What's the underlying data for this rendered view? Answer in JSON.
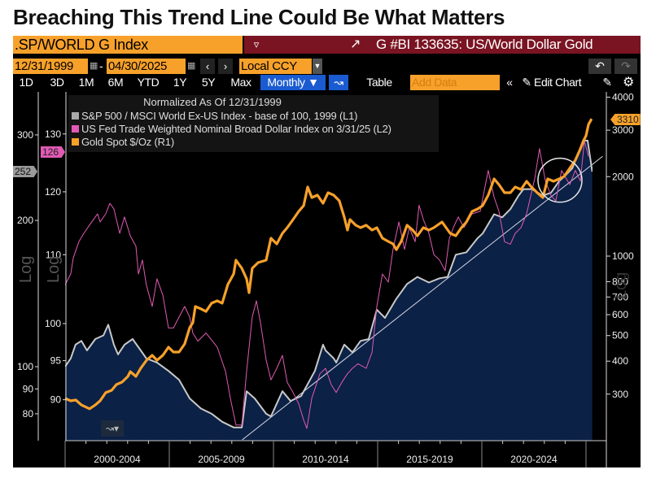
{
  "headline": "Breaching This Trend Line Could Be What Matters",
  "security": {
    "value": ".SP/WORLD G Index",
    "dropdown_icon": "filter-arrow-icon"
  },
  "graph_title": "G #BI 133635: US/World Dollar Gold",
  "dates": {
    "start": "12/31/1999",
    "separator": "-",
    "end": "04/30/2025"
  },
  "currency": "Local CCY",
  "nav": {
    "prev": "‹",
    "next": "›"
  },
  "history": {
    "undo": "↶",
    "redo": "↷"
  },
  "periods": [
    "1D",
    "3D",
    "1M",
    "6M",
    "YTD",
    "1Y",
    "5Y",
    "Max"
  ],
  "frequency": "Monthly ▼",
  "toolbar": {
    "table": "Table",
    "add_data_placeholder": "Add Data",
    "collapse": "«",
    "edit_chart": "Edit Chart"
  },
  "colors": {
    "gray_series": "#c9c9c9",
    "pink_series": "#e05ab4",
    "gold_series": "#f7a12a",
    "area_fill": "#0b2145",
    "title_band": "#7a1422",
    "accent_orange": "#f7a12a",
    "accent_blue": "#1a5bd1"
  },
  "chart_data": {
    "type": "line",
    "legend_title": "Normalized As Of 12/31/1999",
    "legend_placement": "top-left",
    "x_tick_labels": [
      "2000-2004",
      "2005-2009",
      "2010-2014",
      "2015-2019",
      "2020-2024"
    ],
    "x_range": [
      2000,
      2025.33
    ],
    "axes": {
      "L1": {
        "scale": "log",
        "label": "Log",
        "ticks": [
          300,
          200,
          100,
          90,
          80
        ],
        "last_value_tag": "252"
      },
      "L2": {
        "scale": "log",
        "label": "Log",
        "ticks": [
          130,
          120,
          110,
          100,
          95,
          90
        ],
        "last_value_tag": "126"
      },
      "R1": {
        "scale": "log",
        "label": "Log",
        "ticks": [
          4000,
          3000,
          2000,
          1000,
          800,
          700,
          600,
          500,
          400,
          300
        ],
        "last_value_tag": "3310"
      }
    },
    "series": [
      {
        "name": "S&P 500 / MSCI World Ex-US Index - base of 100, 1999 (L1)",
        "axis": "L1",
        "style": "area",
        "points": [
          [
            2000.0,
            100
          ],
          [
            2000.27,
            104
          ],
          [
            2000.5,
            111
          ],
          [
            2000.78,
            113
          ],
          [
            2001.05,
            108
          ],
          [
            2001.45,
            114
          ],
          [
            2001.84,
            116
          ],
          [
            2002.07,
            122
          ],
          [
            2002.34,
            111
          ],
          [
            2002.54,
            106
          ],
          [
            2002.85,
            111
          ],
          [
            2003.24,
            114
          ],
          [
            2003.63,
            108
          ],
          [
            2003.9,
            104
          ],
          [
            2004.41,
            102
          ],
          [
            2004.96,
            98
          ],
          [
            2005.47,
            94
          ],
          [
            2005.98,
            86
          ],
          [
            2006.52,
            82
          ],
          [
            2007.03,
            80
          ],
          [
            2007.54,
            77
          ],
          [
            2008.09,
            75
          ],
          [
            2008.48,
            75
          ],
          [
            2008.71,
            89
          ],
          [
            2009.1,
            86
          ],
          [
            2009.65,
            80
          ],
          [
            2009.88,
            79
          ],
          [
            2010.43,
            89
          ],
          [
            2010.82,
            85
          ],
          [
            2011.33,
            87
          ],
          [
            2011.99,
            98
          ],
          [
            2012.38,
            111
          ],
          [
            2012.5,
            108
          ],
          [
            2012.89,
            104
          ],
          [
            2013.01,
            102
          ],
          [
            2013.4,
            111
          ],
          [
            2013.79,
            107
          ],
          [
            2014.18,
            113
          ],
          [
            2014.57,
            114
          ],
          [
            2014.96,
            131
          ],
          [
            2015.35,
            126
          ],
          [
            2015.9,
            138
          ],
          [
            2016.41,
            148
          ],
          [
            2016.91,
            153
          ],
          [
            2017.46,
            149
          ],
          [
            2017.97,
            152
          ],
          [
            2018.36,
            153
          ],
          [
            2018.75,
            170
          ],
          [
            2019.26,
            172
          ],
          [
            2019.8,
            184
          ],
          [
            2020.04,
            188
          ],
          [
            2020.59,
            206
          ],
          [
            2020.98,
            203
          ],
          [
            2021.37,
            211
          ],
          [
            2021.76,
            225
          ],
          [
            2022.0,
            232
          ],
          [
            2022.4,
            232
          ],
          [
            2022.93,
            225
          ],
          [
            2023.32,
            228
          ],
          [
            2023.71,
            241
          ],
          [
            2023.95,
            246
          ],
          [
            2024.34,
            256
          ],
          [
            2024.61,
            273
          ],
          [
            2024.88,
            292
          ],
          [
            2025.08,
            292
          ],
          [
            2025.3,
            252
          ]
        ]
      },
      {
        "name": "US Fed Trade Weighted Nominal Broad Dollar Index on 3/31/25 (L2)",
        "axis": "L2",
        "style": "line",
        "points": [
          [
            2000.0,
            105.5
          ],
          [
            2000.27,
            107.1
          ],
          [
            2000.39,
            109.5
          ],
          [
            2000.66,
            112.0
          ],
          [
            2000.9,
            113.3
          ],
          [
            2001.17,
            114.6
          ],
          [
            2001.45,
            115.9
          ],
          [
            2001.56,
            116.4
          ],
          [
            2001.68,
            115.1
          ],
          [
            2001.95,
            116.4
          ],
          [
            2002.15,
            118.1
          ],
          [
            2002.34,
            117.2
          ],
          [
            2002.62,
            113.3
          ],
          [
            2002.85,
            115.9
          ],
          [
            2003.13,
            112.9
          ],
          [
            2003.4,
            111.3
          ],
          [
            2003.52,
            107.1
          ],
          [
            2003.71,
            109.2
          ],
          [
            2003.9,
            105.5
          ],
          [
            2004.18,
            102.4
          ],
          [
            2004.41,
            106.4
          ],
          [
            2004.69,
            104.0
          ],
          [
            2004.96,
            99.4
          ],
          [
            2005.2,
            99.4
          ],
          [
            2005.47,
            100.9
          ],
          [
            2005.74,
            102.4
          ],
          [
            2005.98,
            100.9
          ],
          [
            2006.13,
            98.7
          ],
          [
            2006.37,
            97.6
          ],
          [
            2006.76,
            98.7
          ],
          [
            2007.3,
            96.8
          ],
          [
            2007.7,
            93.6
          ],
          [
            2007.93,
            90.2
          ],
          [
            2008.2,
            86.9
          ],
          [
            2008.48,
            86.9
          ],
          [
            2008.71,
            93.6
          ],
          [
            2008.98,
            100.9
          ],
          [
            2009.18,
            103.2
          ],
          [
            2009.38,
            100.1
          ],
          [
            2009.65,
            95.1
          ],
          [
            2009.88,
            92.5
          ],
          [
            2010.16,
            94.0
          ],
          [
            2010.43,
            95.7
          ],
          [
            2010.66,
            92.2
          ],
          [
            2010.94,
            90.9
          ],
          [
            2011.21,
            89.5
          ],
          [
            2011.45,
            87.5
          ],
          [
            2011.6,
            86.5
          ],
          [
            2011.84,
            90.2
          ],
          [
            2012.23,
            93.3
          ],
          [
            2012.5,
            94.0
          ],
          [
            2012.77,
            91.9
          ],
          [
            2013.01,
            90.9
          ],
          [
            2013.28,
            92.2
          ],
          [
            2013.55,
            93.3
          ],
          [
            2013.79,
            94.0
          ],
          [
            2014.06,
            94.6
          ],
          [
            2014.45,
            94.0
          ],
          [
            2014.73,
            96.1
          ],
          [
            2014.96,
            102.4
          ],
          [
            2015.23,
            107.1
          ],
          [
            2015.51,
            105.9
          ],
          [
            2015.74,
            110.8
          ],
          [
            2016.02,
            115.1
          ],
          [
            2016.29,
            110.8
          ],
          [
            2016.52,
            114.2
          ],
          [
            2016.8,
            112.0
          ],
          [
            2016.99,
            117.8
          ],
          [
            2017.19,
            115.5
          ],
          [
            2017.46,
            113.3
          ],
          [
            2017.7,
            110.0
          ],
          [
            2017.97,
            109.2
          ],
          [
            2018.24,
            107.6
          ],
          [
            2018.44,
            112.5
          ],
          [
            2018.63,
            114.2
          ],
          [
            2018.87,
            115.9
          ],
          [
            2019.14,
            114.2
          ],
          [
            2019.53,
            116.4
          ],
          [
            2019.92,
            116.8
          ],
          [
            2020.31,
            123.6
          ],
          [
            2020.59,
            119.1
          ],
          [
            2020.82,
            116.8
          ],
          [
            2021.09,
            112.0
          ],
          [
            2021.37,
            111.6
          ],
          [
            2021.6,
            113.3
          ],
          [
            2021.88,
            114.2
          ],
          [
            2022.15,
            116.4
          ],
          [
            2022.54,
            122.2
          ],
          [
            2022.77,
            127.4
          ],
          [
            2023.05,
            121.8
          ],
          [
            2023.32,
            119.4
          ],
          [
            2023.55,
            118.5
          ],
          [
            2023.83,
            123.6
          ],
          [
            2024.22,
            121.2
          ],
          [
            2024.49,
            123.6
          ],
          [
            2024.73,
            121.8
          ],
          [
            2024.92,
            128.8
          ],
          [
            2025.12,
            126
          ]
        ]
      },
      {
        "name": "Gold Spot $/Oz (R1)",
        "axis": "R1",
        "style": "line",
        "points": [
          [
            2000.0,
            289
          ],
          [
            2000.27,
            283
          ],
          [
            2000.51,
            285
          ],
          [
            2000.78,
            273
          ],
          [
            2001.17,
            264
          ],
          [
            2001.45,
            273
          ],
          [
            2001.68,
            283
          ],
          [
            2001.95,
            304
          ],
          [
            2002.23,
            310
          ],
          [
            2002.46,
            326
          ],
          [
            2002.73,
            333
          ],
          [
            2003.01,
            350
          ],
          [
            2003.13,
            365
          ],
          [
            2003.4,
            350
          ],
          [
            2003.63,
            376
          ],
          [
            2003.91,
            403
          ],
          [
            2004.18,
            421
          ],
          [
            2004.41,
            403
          ],
          [
            2004.69,
            421
          ],
          [
            2004.96,
            452
          ],
          [
            2005.2,
            433
          ],
          [
            2005.47,
            433
          ],
          [
            2005.74,
            465
          ],
          [
            2005.98,
            536
          ],
          [
            2006.13,
            559
          ],
          [
            2006.25,
            644
          ],
          [
            2006.52,
            631
          ],
          [
            2006.76,
            617
          ],
          [
            2007.03,
            663
          ],
          [
            2007.3,
            677
          ],
          [
            2007.54,
            663
          ],
          [
            2007.81,
            780
          ],
          [
            2008.09,
            856
          ],
          [
            2008.2,
            965
          ],
          [
            2008.48,
            899
          ],
          [
            2008.71,
            820
          ],
          [
            2008.83,
            727
          ],
          [
            2008.98,
            899
          ],
          [
            2009.26,
            945
          ],
          [
            2009.65,
            965
          ],
          [
            2009.88,
            1169
          ],
          [
            2010.16,
            1112
          ],
          [
            2010.43,
            1220
          ],
          [
            2010.66,
            1282
          ],
          [
            2010.94,
            1376
          ],
          [
            2011.21,
            1477
          ],
          [
            2011.45,
            1553
          ],
          [
            2011.64,
            1827
          ],
          [
            2011.84,
            1666
          ],
          [
            2012.11,
            1702
          ],
          [
            2012.38,
            1586
          ],
          [
            2012.62,
            1739
          ],
          [
            2012.89,
            1702
          ],
          [
            2013.16,
            1620
          ],
          [
            2013.4,
            1405
          ],
          [
            2013.55,
            1255
          ],
          [
            2013.67,
            1376
          ],
          [
            2013.95,
            1309
          ],
          [
            2014.18,
            1282
          ],
          [
            2014.45,
            1309
          ],
          [
            2014.73,
            1255
          ],
          [
            2014.96,
            1282
          ],
          [
            2015.23,
            1169
          ],
          [
            2015.51,
            1136
          ],
          [
            2015.74,
            1112
          ],
          [
            2015.9,
            1058
          ],
          [
            2016.13,
            1136
          ],
          [
            2016.41,
            1309
          ],
          [
            2016.68,
            1255
          ],
          [
            2016.91,
            1194
          ],
          [
            2017.19,
            1282
          ],
          [
            2017.46,
            1255
          ],
          [
            2017.7,
            1282
          ],
          [
            2018.09,
            1347
          ],
          [
            2018.48,
            1220
          ],
          [
            2018.75,
            1194
          ],
          [
            2019.02,
            1282
          ],
          [
            2019.26,
            1347
          ],
          [
            2019.53,
            1477
          ],
          [
            2019.8,
            1509
          ],
          [
            2020.04,
            1553
          ],
          [
            2020.31,
            1702
          ],
          [
            2020.59,
            1962
          ],
          [
            2020.82,
            1867
          ],
          [
            2021.09,
            1739
          ],
          [
            2021.37,
            1739
          ],
          [
            2021.6,
            1827
          ],
          [
            2021.88,
            1789
          ],
          [
            2022.15,
            1920
          ],
          [
            2022.38,
            1827
          ],
          [
            2022.66,
            1739
          ],
          [
            2022.93,
            1666
          ],
          [
            2023.16,
            1962
          ],
          [
            2023.44,
            1920
          ],
          [
            2023.71,
            1962
          ],
          [
            2023.95,
            2004
          ],
          [
            2024.22,
            2151
          ],
          [
            2024.49,
            2309
          ],
          [
            2024.73,
            2550
          ],
          [
            2024.88,
            2737
          ],
          [
            2025.0,
            2857
          ],
          [
            2025.12,
            3155
          ],
          [
            2025.27,
            3310
          ]
        ]
      }
    ],
    "annotations": {
      "trend_line": {
        "axis": "L1",
        "from": [
          2008.5,
          70.7
        ],
        "to": [
          2025.8,
          271
        ]
      },
      "circle_highlight": {
        "axis": "L1",
        "center": [
          2023.75,
          242
        ]
      }
    }
  }
}
